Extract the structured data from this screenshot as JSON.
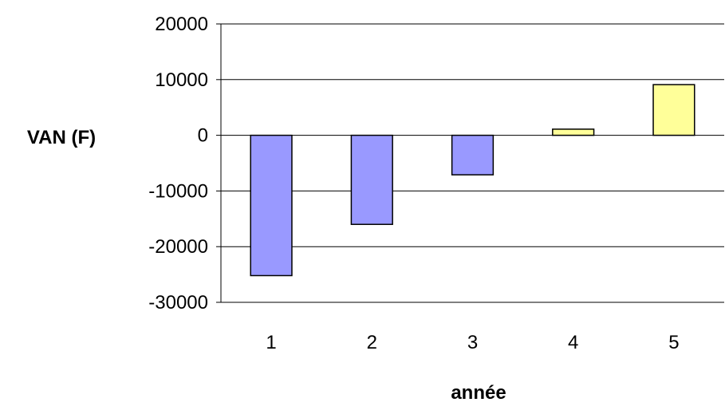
{
  "chart_data": {
    "type": "bar",
    "title": "",
    "xlabel": "année",
    "ylabel": "VAN (F)",
    "categories": [
      "1",
      "2",
      "3",
      "4",
      "5"
    ],
    "values": [
      -25200,
      -16000,
      -7100,
      1100,
      9100
    ],
    "ylim": [
      -30000,
      20000
    ],
    "yticks": [
      20000,
      10000,
      0,
      -10000,
      -20000,
      -30000
    ],
    "ytick_labels": [
      "20000",
      "10000",
      "0",
      "-10000",
      "-20000",
      "-30000"
    ],
    "grid": true,
    "legend": "none",
    "colors": {
      "negative": "#9999ff",
      "positive": "#ffff99",
      "bar_border": "#000000",
      "gridline": "#000000"
    }
  }
}
